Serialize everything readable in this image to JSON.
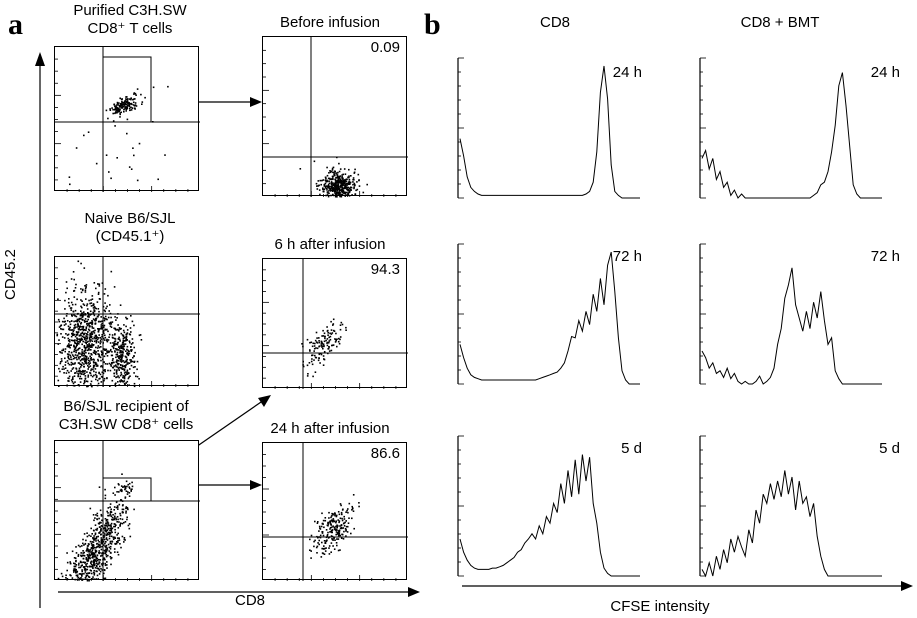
{
  "panel_a": {
    "letter": "a",
    "y_axis_label": "CD45.2",
    "x_axis_label": "CD8",
    "left_titles": [
      {
        "line1": "Purified C3H.SW",
        "line2": "CD8⁺ T cells"
      },
      {
        "line1": "Naive B6/SJL",
        "line2": "(CD45.1⁺)"
      },
      {
        "line1": "B6/SJL recipient of",
        "line2": "C3H.SW CD8⁺ cells"
      }
    ],
    "right_titles": [
      "Before infusion",
      "6 h after infusion",
      "24 h after infusion"
    ],
    "right_values": [
      "0.09",
      "94.3",
      "86.6"
    ]
  },
  "panel_b": {
    "letter": "b",
    "columns": [
      "CD8",
      "CD8 + BMT"
    ],
    "row_labels": [
      "24 h",
      "72 h",
      "5 d"
    ],
    "x_axis_label": "CFSE intensity"
  },
  "colors": {
    "ink": "#000000",
    "background": "#ffffff"
  },
  "chart_data": [
    {
      "type": "scatter",
      "panel": "a",
      "title": "Purified C3H.SW CD8⁺ T cells",
      "xlabel": "CD8",
      "ylabel": "CD45.2",
      "gated_region": true
    },
    {
      "type": "scatter",
      "panel": "a",
      "title": "Before infusion",
      "xlabel": "CD8",
      "ylabel": "CD45.2",
      "quadrant_value": 0.09
    },
    {
      "type": "scatter",
      "panel": "a",
      "title": "Naive B6/SJL (CD45.1⁺)",
      "xlabel": "CD8",
      "ylabel": "CD45.2"
    },
    {
      "type": "scatter",
      "panel": "a",
      "title": "6 h after infusion",
      "xlabel": "CD8",
      "ylabel": "CD45.2",
      "quadrant_value": 94.3
    },
    {
      "type": "scatter",
      "panel": "a",
      "title": "B6/SJL recipient of C3H.SW CD8⁺ cells",
      "xlabel": "CD8",
      "ylabel": "CD45.2",
      "gated_region": true
    },
    {
      "type": "scatter",
      "panel": "a",
      "title": "24 h after infusion",
      "xlabel": "CD8",
      "ylabel": "CD45.2",
      "quadrant_value": 86.6
    },
    {
      "type": "line",
      "panel": "b",
      "column": "CD8",
      "row": "24 h",
      "xlabel": "CFSE intensity",
      "x": [
        0,
        2,
        4,
        6,
        8,
        10,
        12,
        14,
        16,
        18,
        20,
        22,
        24,
        26,
        28,
        30,
        32,
        34,
        36,
        38,
        40,
        42,
        44,
        46,
        48,
        50,
        52,
        54,
        56,
        58,
        60,
        62,
        64,
        66,
        68,
        70,
        72,
        74,
        76,
        78,
        80,
        82,
        84,
        86,
        88,
        90,
        92,
        94,
        96,
        98,
        100
      ],
      "y": [
        0.45,
        0.32,
        0.16,
        0.08,
        0.05,
        0.03,
        0.02,
        0.02,
        0.02,
        0.02,
        0.02,
        0.02,
        0.02,
        0.02,
        0.02,
        0.02,
        0.02,
        0.02,
        0.02,
        0.02,
        0.02,
        0.02,
        0.02,
        0.02,
        0.02,
        0.02,
        0.02,
        0.02,
        0.02,
        0.02,
        0.02,
        0.02,
        0.02,
        0.02,
        0.02,
        0.03,
        0.05,
        0.12,
        0.35,
        0.8,
        1.0,
        0.75,
        0.25,
        0.05,
        0.02,
        0.0,
        0.0,
        0.0,
        0.0,
        0.0,
        0.0
      ]
    },
    {
      "type": "line",
      "panel": "b",
      "column": "CD8 + BMT",
      "row": "24 h",
      "xlabel": "CFSE intensity",
      "x": [
        0,
        2,
        4,
        6,
        8,
        10,
        12,
        14,
        16,
        18,
        20,
        22,
        24,
        26,
        28,
        30,
        32,
        34,
        36,
        38,
        40,
        42,
        44,
        46,
        48,
        50,
        52,
        54,
        56,
        58,
        60,
        62,
        64,
        66,
        68,
        70,
        72,
        74,
        76,
        78,
        80,
        82,
        84,
        86,
        88,
        90,
        92,
        94,
        96,
        98,
        100
      ],
      "y": [
        0.3,
        0.36,
        0.22,
        0.3,
        0.14,
        0.2,
        0.08,
        0.12,
        0.02,
        0.06,
        0.0,
        0.03,
        0.0,
        0.0,
        0.0,
        0.0,
        0.0,
        0.0,
        0.0,
        0.0,
        0.0,
        0.0,
        0.0,
        0.0,
        0.0,
        0.0,
        0.0,
        0.0,
        0.0,
        0.0,
        0.0,
        0.02,
        0.04,
        0.1,
        0.12,
        0.2,
        0.35,
        0.55,
        0.85,
        0.95,
        0.7,
        0.4,
        0.1,
        0.03,
        0.0,
        0.0,
        0.0,
        0.0,
        0.0,
        0.0,
        0.0
      ]
    },
    {
      "type": "line",
      "panel": "b",
      "column": "CD8",
      "row": "72 h",
      "xlabel": "CFSE intensity",
      "x": [
        0,
        2,
        4,
        6,
        8,
        10,
        12,
        14,
        16,
        18,
        20,
        22,
        24,
        26,
        28,
        30,
        32,
        34,
        36,
        38,
        40,
        42,
        44,
        46,
        48,
        50,
        52,
        54,
        56,
        58,
        60,
        62,
        64,
        66,
        68,
        70,
        72,
        74,
        76,
        78,
        80,
        82,
        84,
        86,
        88,
        90,
        92,
        94,
        96,
        98,
        100
      ],
      "y": [
        0.3,
        0.2,
        0.12,
        0.07,
        0.05,
        0.04,
        0.03,
        0.03,
        0.03,
        0.03,
        0.03,
        0.03,
        0.03,
        0.03,
        0.03,
        0.03,
        0.03,
        0.03,
        0.03,
        0.03,
        0.03,
        0.03,
        0.04,
        0.05,
        0.06,
        0.07,
        0.08,
        0.09,
        0.12,
        0.16,
        0.25,
        0.36,
        0.35,
        0.48,
        0.4,
        0.55,
        0.45,
        0.68,
        0.55,
        0.8,
        0.6,
        0.9,
        1.0,
        0.7,
        0.35,
        0.1,
        0.03,
        0.0,
        0.0,
        0.0,
        0.0
      ]
    },
    {
      "type": "line",
      "panel": "b",
      "column": "CD8 + BMT",
      "row": "72 h",
      "xlabel": "CFSE intensity",
      "x": [
        0,
        2,
        4,
        6,
        8,
        10,
        12,
        14,
        16,
        18,
        20,
        22,
        24,
        26,
        28,
        30,
        32,
        34,
        36,
        38,
        40,
        42,
        44,
        46,
        48,
        50,
        52,
        54,
        56,
        58,
        60,
        62,
        64,
        66,
        68,
        70,
        72,
        74,
        76,
        78,
        80,
        82,
        84,
        86,
        88,
        90,
        92,
        94,
        96,
        98,
        100
      ],
      "y": [
        0.25,
        0.2,
        0.12,
        0.16,
        0.08,
        0.1,
        0.05,
        0.12,
        0.04,
        0.08,
        0.02,
        0.0,
        0.02,
        0.0,
        0.0,
        0.02,
        0.06,
        0.0,
        0.02,
        0.05,
        0.12,
        0.3,
        0.42,
        0.65,
        0.75,
        0.88,
        0.6,
        0.5,
        0.4,
        0.55,
        0.42,
        0.62,
        0.5,
        0.7,
        0.48,
        0.3,
        0.35,
        0.1,
        0.04,
        0.0,
        0.0,
        0.0,
        0.0,
        0.0,
        0.0,
        0.0,
        0.0,
        0.0,
        0.0,
        0.0,
        0.0
      ]
    },
    {
      "type": "line",
      "panel": "b",
      "column": "CD8",
      "row": "5 d",
      "xlabel": "CFSE intensity",
      "x": [
        0,
        2,
        4,
        6,
        8,
        10,
        12,
        14,
        16,
        18,
        20,
        22,
        24,
        26,
        28,
        30,
        32,
        34,
        36,
        38,
        40,
        42,
        44,
        46,
        48,
        50,
        52,
        54,
        56,
        58,
        60,
        62,
        64,
        66,
        68,
        70,
        72,
        74,
        76,
        78,
        80,
        82,
        84,
        86,
        88,
        90,
        92,
        94,
        96,
        98,
        100
      ],
      "y": [
        0.28,
        0.18,
        0.12,
        0.08,
        0.06,
        0.05,
        0.05,
        0.05,
        0.05,
        0.06,
        0.06,
        0.07,
        0.08,
        0.1,
        0.12,
        0.14,
        0.18,
        0.2,
        0.25,
        0.28,
        0.32,
        0.28,
        0.38,
        0.32,
        0.45,
        0.4,
        0.55,
        0.48,
        0.7,
        0.55,
        0.8,
        0.6,
        0.88,
        0.62,
        0.92,
        0.72,
        0.9,
        0.55,
        0.4,
        0.18,
        0.06,
        0.02,
        0.0,
        0.0,
        0.0,
        0.0,
        0.0,
        0.0,
        0.0,
        0.0,
        0.0
      ]
    },
    {
      "type": "line",
      "panel": "b",
      "column": "CD8 + BMT",
      "row": "5 d",
      "xlabel": "CFSE intensity",
      "x": [
        0,
        2,
        4,
        6,
        8,
        10,
        12,
        14,
        16,
        18,
        20,
        22,
        24,
        26,
        28,
        30,
        32,
        34,
        36,
        38,
        40,
        42,
        44,
        46,
        48,
        50,
        52,
        54,
        56,
        58,
        60,
        62,
        64,
        66,
        68,
        70,
        72,
        74,
        76,
        78,
        80,
        82,
        84,
        86,
        88,
        90,
        92,
        94,
        96,
        98,
        100
      ],
      "y": [
        0.05,
        0.0,
        0.1,
        0.0,
        0.15,
        0.05,
        0.2,
        0.1,
        0.28,
        0.18,
        0.3,
        0.22,
        0.15,
        0.35,
        0.25,
        0.5,
        0.4,
        0.62,
        0.55,
        0.7,
        0.58,
        0.72,
        0.6,
        0.8,
        0.62,
        0.75,
        0.5,
        0.72,
        0.55,
        0.6,
        0.45,
        0.55,
        0.3,
        0.15,
        0.05,
        0.0,
        0.0,
        0.0,
        0.0,
        0.0,
        0.0,
        0.0,
        0.0,
        0.0,
        0.0,
        0.0,
        0.0,
        0.0,
        0.0,
        0.0,
        0.0
      ]
    }
  ]
}
